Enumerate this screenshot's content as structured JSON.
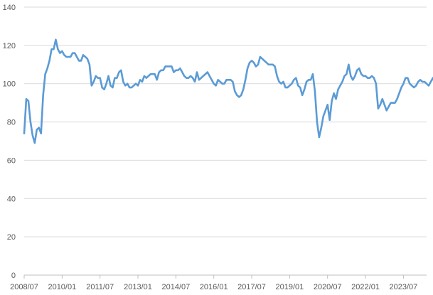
{
  "chart_data": {
    "type": "line",
    "title": "",
    "xlabel": "",
    "ylabel": "",
    "ylim": [
      0,
      140
    ],
    "y_ticks": [
      0,
      20,
      40,
      60,
      80,
      100,
      120,
      140
    ],
    "x_ticks": [
      "2008/07",
      "2010/01",
      "2011/07",
      "2013/01",
      "2014/07",
      "2016/01",
      "2017/07",
      "2019/01",
      "2020/07",
      "2022/01",
      "2023/07"
    ],
    "x_start": "2008/07",
    "x_end": "2024/06",
    "grid": true,
    "legend": "none",
    "line_color": "#5b9bd5",
    "series": [
      {
        "values": [
          74,
          92,
          91,
          80,
          73,
          69,
          76,
          77,
          74,
          94,
          105,
          108,
          112,
          118,
          118,
          123,
          118,
          116,
          117,
          115,
          114,
          114,
          114,
          116,
          116,
          114,
          112,
          112,
          115,
          114,
          113,
          110,
          99,
          101,
          104,
          103,
          103,
          98,
          97,
          100,
          104,
          99,
          98,
          103,
          103,
          106,
          107,
          101,
          99,
          100,
          98,
          98,
          99,
          100,
          99,
          102,
          101,
          104,
          103,
          104,
          105,
          105,
          105,
          102,
          106,
          107,
          107,
          109,
          109,
          109,
          109,
          106,
          107,
          107,
          108,
          106,
          104,
          103,
          103,
          104,
          103,
          101,
          106,
          102,
          103,
          104,
          105,
          106,
          104,
          102,
          100,
          99,
          102,
          101,
          100,
          100,
          102,
          102,
          102,
          101,
          96,
          94,
          93,
          94,
          97,
          102,
          108,
          111,
          112,
          111,
          109,
          110,
          114,
          113,
          112,
          111,
          110,
          110,
          110,
          109,
          104,
          101,
          100,
          101,
          98,
          98,
          99,
          100,
          102,
          103,
          99,
          98,
          94,
          97,
          101,
          102,
          102,
          105,
          96,
          80,
          72,
          77,
          83,
          86,
          89,
          81,
          91,
          95,
          92,
          97,
          99,
          101,
          104,
          105,
          110,
          104,
          102,
          104,
          107,
          108,
          105,
          104,
          104,
          103,
          103,
          104,
          103,
          100,
          87,
          89,
          92,
          89,
          86,
          88,
          90,
          90,
          90,
          92,
          95,
          98,
          100,
          103,
          103,
          100,
          99,
          98,
          99,
          101,
          102,
          101,
          101,
          100,
          99,
          101,
          103,
          100,
          100,
          101,
          100
        ]
      }
    ]
  }
}
